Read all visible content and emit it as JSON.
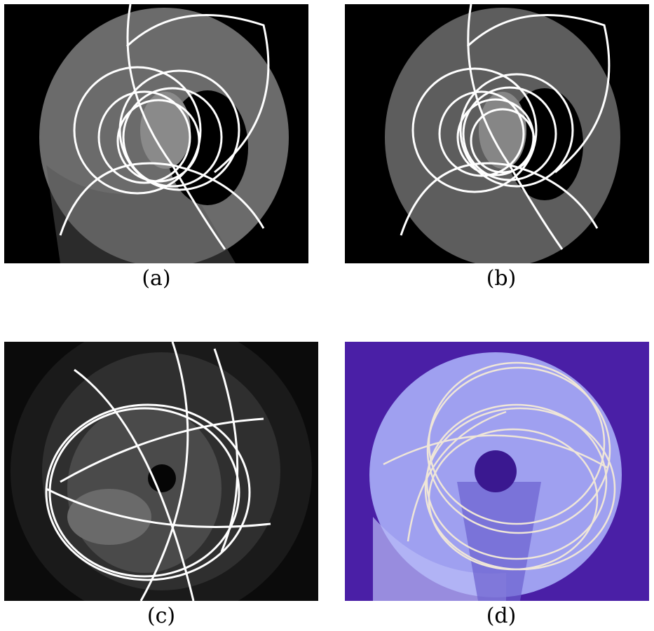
{
  "figure": {
    "panels": [
      {
        "id": "a",
        "caption": "(a)",
        "kind": "synthetic-fisheye-image",
        "background": "#000000"
      },
      {
        "id": "b",
        "caption": "(b)",
        "kind": "synthetic-fisheye-image-noisy",
        "background": "#000000"
      },
      {
        "id": "c",
        "caption": "(c)",
        "kind": "real-fisheye-photo-grayscale",
        "background": "#0b0b0b"
      },
      {
        "id": "d",
        "caption": "(d)",
        "kind": "real-fisheye-photo-colormap",
        "background": "#4a1fa6"
      }
    ],
    "colors": {
      "line_white": "#ffffff",
      "line_cream": "#efe6d8",
      "disk_gray": "#6a6a6a",
      "purple_bg": "#4a1fa6",
      "lavender": "#9fa0f0"
    }
  }
}
